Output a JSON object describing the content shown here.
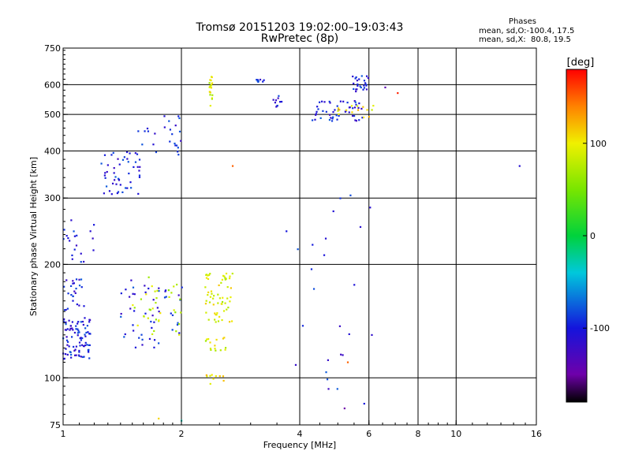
{
  "chart_data": {
    "type": "scatter",
    "title": "Tromsø 20151203 19:02:00–19:03:43",
    "subtitle": "RwPretec (8p)",
    "xlabel": "Frequency [MHz]",
    "ylabel": "Stationary phase Virtual Height [km]",
    "x_scale": "log",
    "y_scale": "log",
    "xlim": [
      1,
      16
    ],
    "ylim": [
      75,
      750
    ],
    "x_ticks": [
      "1",
      "2",
      "4",
      "6",
      "8",
      "10",
      "16"
    ],
    "y_ticks": [
      "75",
      "100",
      "200",
      "300",
      "400",
      "500",
      "600",
      "750"
    ],
    "x_gridlines": [
      2,
      4,
      6,
      8,
      10
    ],
    "y_gridlines": [
      100,
      200,
      300,
      400,
      500,
      600
    ],
    "stats": {
      "heading": "Phases",
      "line1": "mean, sd,O:-100.4, 17.5",
      "line2": "mean, sd,X:  80.8, 19.5"
    },
    "colorbar": {
      "label": "[deg]",
      "ticks": [
        "100",
        "0",
        "-100"
      ],
      "range": [
        -180,
        180
      ],
      "tick_values": [
        100,
        0,
        -100
      ]
    },
    "clusters": [
      {
        "phase": -100,
        "n": 90,
        "x": [
          1.0,
          1.18
        ],
        "y": [
          112,
          145
        ]
      },
      {
        "phase": -100,
        "n": 25,
        "x": [
          1.0,
          1.15
        ],
        "y": [
          150,
          185
        ]
      },
      {
        "phase": -100,
        "n": 20,
        "x": [
          1.0,
          1.2
        ],
        "y": [
          200,
          265
        ]
      },
      {
        "phase": -100,
        "n": 50,
        "x": [
          1.25,
          1.58
        ],
        "y": [
          305,
          400
        ]
      },
      {
        "phase": -100,
        "n": 25,
        "x": [
          1.55,
          2.0
        ],
        "y": [
          390,
          500
        ]
      },
      {
        "phase": -100,
        "n": 50,
        "x": [
          1.4,
          2.05
        ],
        "y": [
          120,
          185
        ]
      },
      {
        "phase": 80,
        "n": 35,
        "x": [
          1.5,
          2.0
        ],
        "y": [
          130,
          190
        ]
      },
      {
        "phase": 90,
        "n": 60,
        "x": [
          2.3,
          2.7
        ],
        "y": [
          140,
          190
        ]
      },
      {
        "phase": 90,
        "n": 15,
        "x": [
          2.3,
          2.6
        ],
        "y": [
          118,
          128
        ]
      },
      {
        "phase": 90,
        "n": 20,
        "x": [
          2.35,
          2.4
        ],
        "y": [
          525,
          630
        ]
      },
      {
        "phase": 100,
        "n": 10,
        "x": [
          2.3,
          2.6
        ],
        "y": [
          96,
          102
        ]
      },
      {
        "phase": -100,
        "n": 50,
        "x": [
          4.3,
          5.8
        ],
        "y": [
          480,
          545
        ]
      },
      {
        "phase": -100,
        "n": 25,
        "x": [
          5.4,
          6.0
        ],
        "y": [
          575,
          635
        ]
      },
      {
        "phase": 100,
        "n": 15,
        "x": [
          5.0,
          6.5
        ],
        "y": [
          490,
          530
        ]
      },
      {
        "phase": -100,
        "n": 10,
        "x": [
          3.4,
          3.6
        ],
        "y": [
          520,
          560
        ]
      },
      {
        "phase": -100,
        "n": 8,
        "x": [
          3.1,
          3.25
        ],
        "y": [
          605,
          620
        ]
      },
      {
        "phase": -100,
        "n": 25,
        "x": [
          3.7,
          6.2
        ],
        "y": [
          85,
          330
        ]
      }
    ],
    "single_points": [
      {
        "x": 14.5,
        "y": 365,
        "phase": -110
      },
      {
        "x": 5.2,
        "y": 83,
        "phase": -150
      },
      {
        "x": 5.3,
        "y": 110,
        "phase": 150
      },
      {
        "x": 1.75,
        "y": 78,
        "phase": 110
      },
      {
        "x": 2.0,
        "y": 77,
        "phase": -30
      },
      {
        "x": 2.7,
        "y": 365,
        "phase": 150
      },
      {
        "x": 3.7,
        "y": 245,
        "phase": -100
      },
      {
        "x": 6.6,
        "y": 590,
        "phase": -140
      },
      {
        "x": 7.1,
        "y": 570,
        "phase": 170
      }
    ]
  }
}
